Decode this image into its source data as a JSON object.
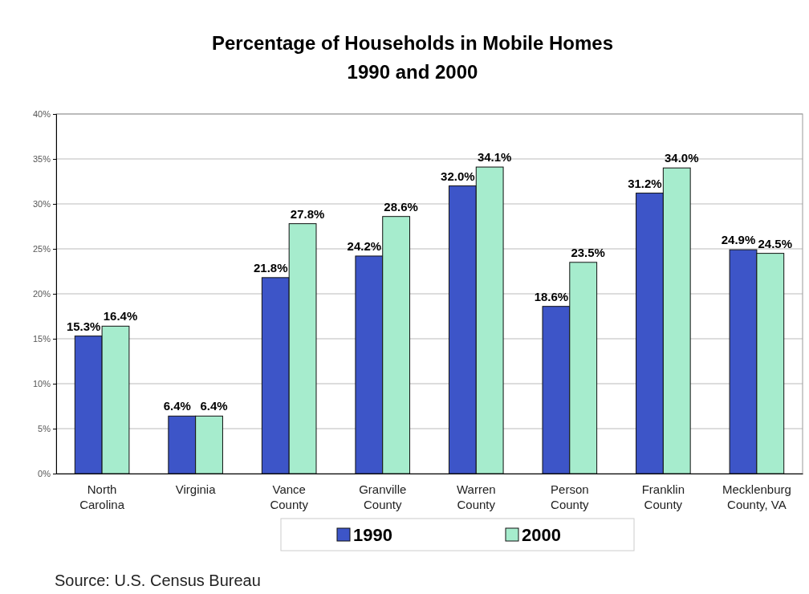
{
  "chart_data": {
    "type": "bar",
    "title": "Percentage of Households in Mobile Homes\n1990 and 2000",
    "categories": [
      "North Carolina",
      "Virginia",
      "Vance County",
      "Granville County",
      "Warren County",
      "Person County",
      "Franklin County",
      "Mecklenburg County, VA"
    ],
    "series": [
      {
        "name": "1990",
        "color": "#3d55c8",
        "values": [
          15.3,
          6.4,
          21.8,
          24.2,
          32.0,
          18.6,
          31.2,
          24.9
        ],
        "value_labels": [
          "15.3%",
          "6.4%",
          "21.8%",
          "24.2%",
          "32.0%",
          "18.6%",
          "31.2%",
          "24.9%"
        ]
      },
      {
        "name": "2000",
        "color": "#a6eccd",
        "values": [
          16.4,
          6.4,
          27.8,
          28.6,
          34.1,
          23.5,
          34.0,
          24.5
        ],
        "value_labels": [
          "16.4%",
          "6.4%",
          "27.8%",
          "28.6%",
          "34.1%",
          "23.5%",
          "34.0%",
          "24.5%"
        ]
      }
    ],
    "ylim": [
      0,
      40
    ],
    "yticks": [
      {
        "value": 0,
        "label": "0%"
      },
      {
        "value": 5,
        "label": "5%"
      },
      {
        "value": 10,
        "label": "10%"
      },
      {
        "value": 15,
        "label": "15%"
      },
      {
        "value": 20,
        "label": "20%"
      },
      {
        "value": 25,
        "label": "25%"
      },
      {
        "value": 30,
        "label": "30%"
      },
      {
        "value": 35,
        "label": "35%"
      },
      {
        "value": 40,
        "label": "40%"
      }
    ],
    "grid": "y",
    "legend": "bottom",
    "annotations": [
      "Source: U.S. Census Bureau"
    ]
  }
}
